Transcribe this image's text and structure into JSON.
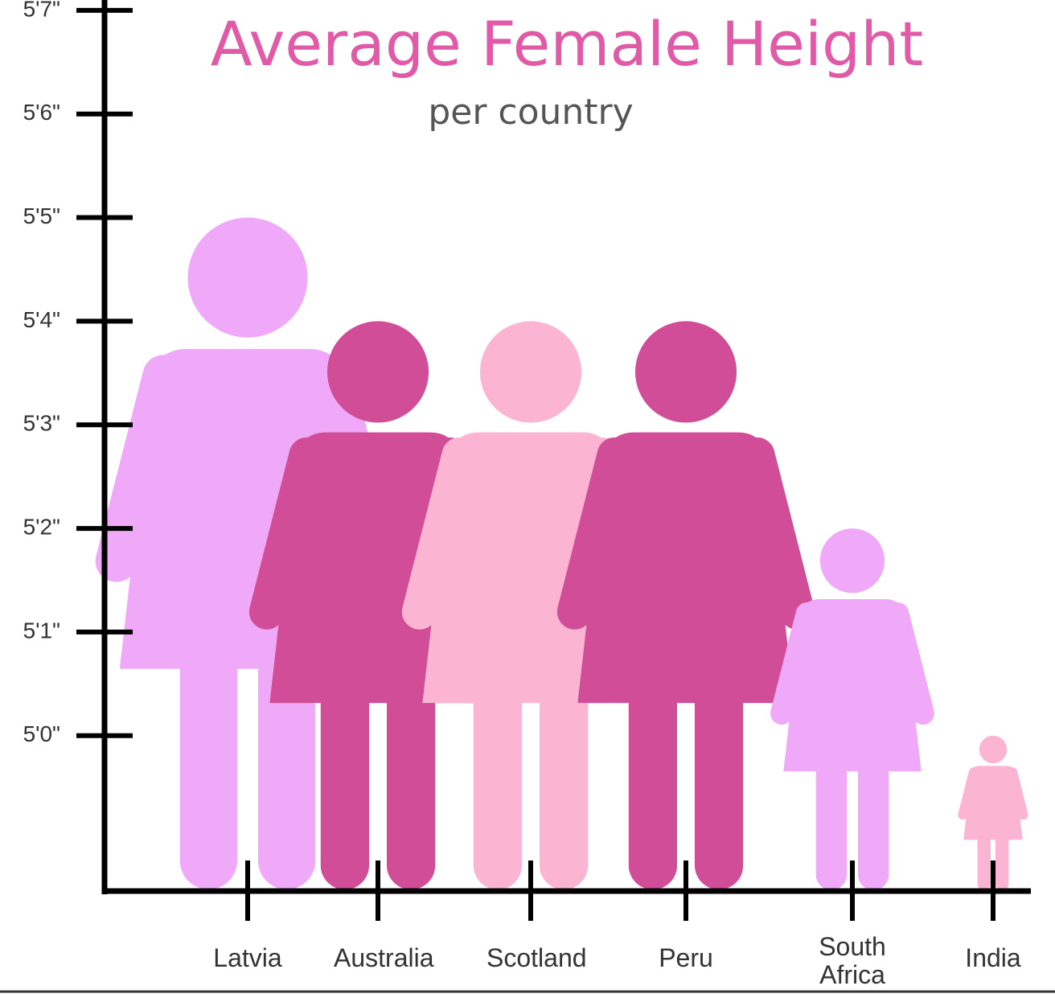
{
  "chart_data": {
    "type": "pictograph",
    "title": "Average Female Height",
    "subtitle": "per country",
    "categories": [
      "Latvia",
      "Australia",
      "Scotland",
      "Peru",
      "South Africa",
      "India"
    ],
    "values": [
      65,
      64,
      64,
      64,
      62,
      60
    ],
    "colors": [
      "#f0a8f8",
      "#d14d97",
      "#fbb5d3",
      "#d14d97",
      "#f0a8f8",
      "#fbb5d3"
    ],
    "ylim": [
      58.5,
      67.1
    ],
    "yticks": [
      {
        "value": 60,
        "label": "5'0\""
      },
      {
        "value": 61,
        "label": "5'1\""
      },
      {
        "value": 62,
        "label": "5'2\""
      },
      {
        "value": 63,
        "label": "5'3\""
      },
      {
        "value": 64,
        "label": "5'4\""
      },
      {
        "value": 65,
        "label": "5'5\""
      },
      {
        "value": 66,
        "label": "5'6\""
      },
      {
        "value": 67,
        "label": "5'7\""
      }
    ]
  }
}
